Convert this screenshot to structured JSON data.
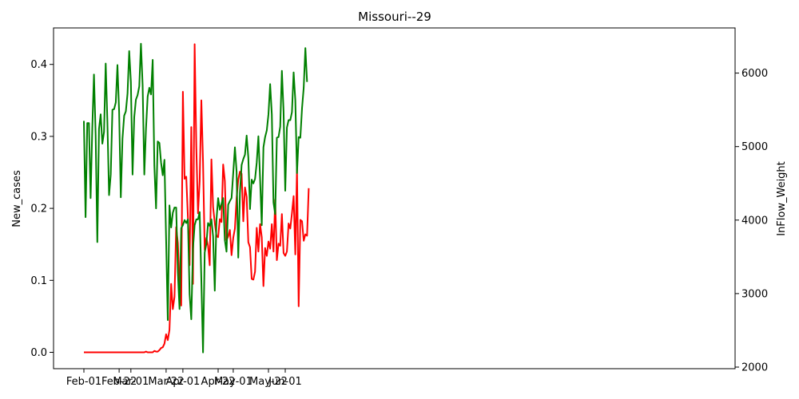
{
  "chart_data": {
    "type": "line",
    "title": "Missouri--29",
    "ylabel_left": "New_cases",
    "ylabel_right": "InFlow_Weight",
    "ylim_left": [
      -0.022,
      0.448
    ],
    "ylim_right": [
      2000,
      6600
    ],
    "xticks": [
      "Feb-01",
      "Feb-22",
      "Mar-01",
      "Mar-22",
      "Apr-01",
      "Apr-22",
      "May-01",
      "May-22",
      "Jun-01"
    ],
    "yticks_left": [
      "0.0",
      "0.1",
      "0.2",
      "0.3",
      "0.4"
    ],
    "yticks_right": [
      "2000",
      "3000",
      "4000",
      "5000",
      "6000"
    ],
    "series": [
      {
        "axis": "left",
        "color": "#ff0000",
        "values": [
          0,
          0,
          0,
          0,
          0,
          0,
          0,
          0,
          0,
          0,
          0,
          0,
          0,
          0,
          0,
          0,
          0,
          0,
          0,
          0,
          0,
          0,
          0,
          0,
          0,
          0,
          0,
          0,
          0,
          0,
          0,
          0,
          0,
          0,
          0,
          0,
          0,
          0.001,
          0,
          0,
          0,
          0,
          0.002,
          0.001,
          0.001,
          0.003,
          0.006,
          0.007,
          0.012,
          0.025,
          0.017,
          0.031,
          0.095,
          0.06,
          0.077,
          0.174,
          0.152,
          0.095,
          0.065,
          0.362,
          0.241,
          0.244,
          0.187,
          0.121,
          0.313,
          0.095,
          0.428,
          0.285,
          0.193,
          0.238,
          0.35,
          0.265,
          0.142,
          0.159,
          0.148,
          0.121,
          0.268,
          0.202,
          0.18,
          0.162,
          0.16,
          0.185,
          0.181,
          0.261,
          0.238,
          0.156,
          0.161,
          0.17,
          0.135,
          0.159,
          0.172,
          0.214,
          0.24,
          0.251,
          0.248,
          0.182,
          0.229,
          0.216,
          0.153,
          0.146,
          0.102,
          0.101,
          0.112,
          0.173,
          0.14,
          0.178,
          0.16,
          0.092,
          0.145,
          0.134,
          0.154,
          0.144,
          0.178,
          0.14,
          0.212,
          0.128,
          0.151,
          0.148,
          0.192,
          0.138,
          0.134,
          0.14,
          0.179,
          0.172,
          0.193,
          0.217,
          0.136,
          0.255,
          0.064,
          0.184,
          0.182,
          0.155,
          0.164,
          0.162,
          0.228
        ]
      },
      {
        "axis": "right",
        "color": "#008000",
        "values": [
          5350,
          4040,
          5320,
          5320,
          4300,
          5250,
          5980,
          5160,
          3700,
          5240,
          5440,
          5040,
          5200,
          6130,
          5340,
          4340,
          4620,
          5500,
          5510,
          5600,
          6110,
          5470,
          4310,
          5110,
          5420,
          5480,
          5720,
          6300,
          5880,
          4620,
          5400,
          5640,
          5700,
          5820,
          6400,
          5840,
          4620,
          5240,
          5680,
          5800,
          5710,
          6180,
          4740,
          4160,
          5070,
          5050,
          4780,
          4610,
          4820,
          3740,
          2640,
          4200,
          3900,
          4100,
          4170,
          4170,
          3280,
          2790,
          3890,
          3930,
          4000,
          3960,
          4010,
          2990,
          2650,
          3610,
          3930,
          4010,
          4010,
          4110,
          3180,
          2200,
          3560,
          3680,
          3960,
          3920,
          4010,
          3780,
          3040,
          4000,
          4300,
          4140,
          4220,
          4300,
          3730,
          3570,
          4210,
          4260,
          4300,
          4640,
          4990,
          4660,
          3490,
          4370,
          4750,
          4830,
          4890,
          5150,
          4850,
          4150,
          4550,
          4500,
          4560,
          4780,
          5140,
          4570,
          3930,
          4990,
          5130,
          5220,
          5440,
          5850,
          5440,
          4240,
          4080,
          5120,
          5130,
          5270,
          6030,
          5480,
          4400,
          5260,
          5360,
          5360,
          5470,
          6010,
          5630,
          4640,
          5130,
          5120,
          5520,
          5800,
          6340,
          5880
        ]
      }
    ]
  }
}
